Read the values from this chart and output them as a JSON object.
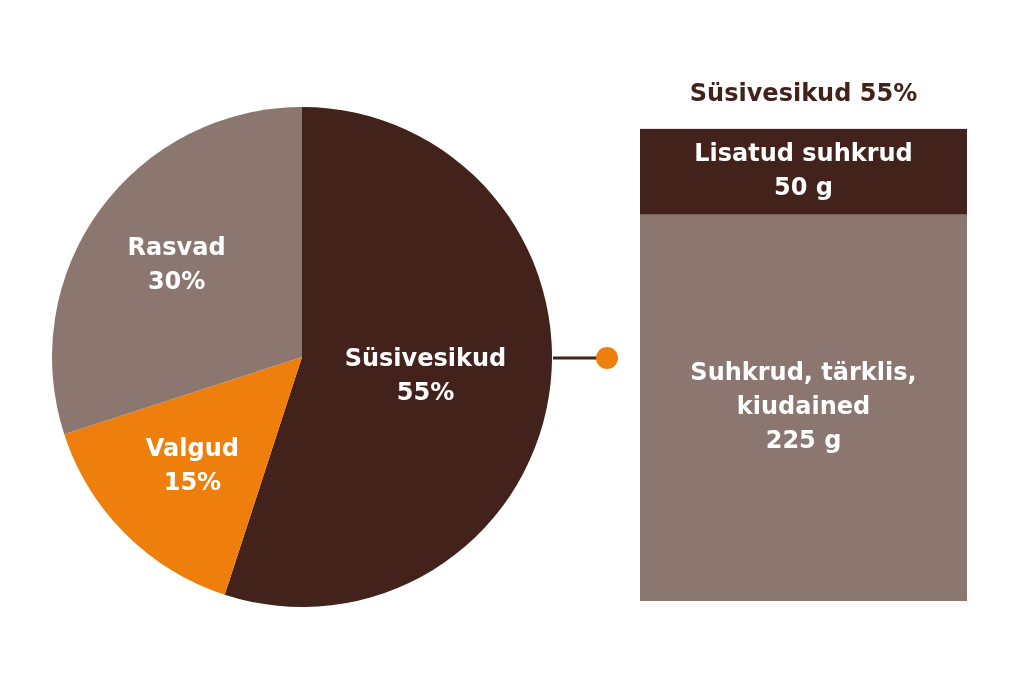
{
  "chart_data": [
    {
      "type": "pie",
      "categories": [
        "Süsivesikud",
        "Valgud",
        "Rasvad"
      ],
      "values": [
        55,
        15,
        30
      ],
      "colors": [
        "#42221a",
        "#ee7f0c",
        "#8c7770"
      ],
      "value_labels": [
        "55%",
        "15%",
        "30%"
      ]
    },
    {
      "type": "bar",
      "title": "Süsivesikud 55%",
      "categories": [
        null
      ],
      "stacked": true,
      "tick_labels": false,
      "series": [
        {
          "name": "Suhkrud, tärklis, kiudained",
          "color": "#8c7770",
          "values": [
            225
          ],
          "value_labels": [
            "225 g"
          ]
        },
        {
          "name": "Lisatud suhkrud",
          "color": "#42221a",
          "values": [
            50
          ],
          "value_labels": [
            "50 g"
          ]
        }
      ]
    }
  ]
}
